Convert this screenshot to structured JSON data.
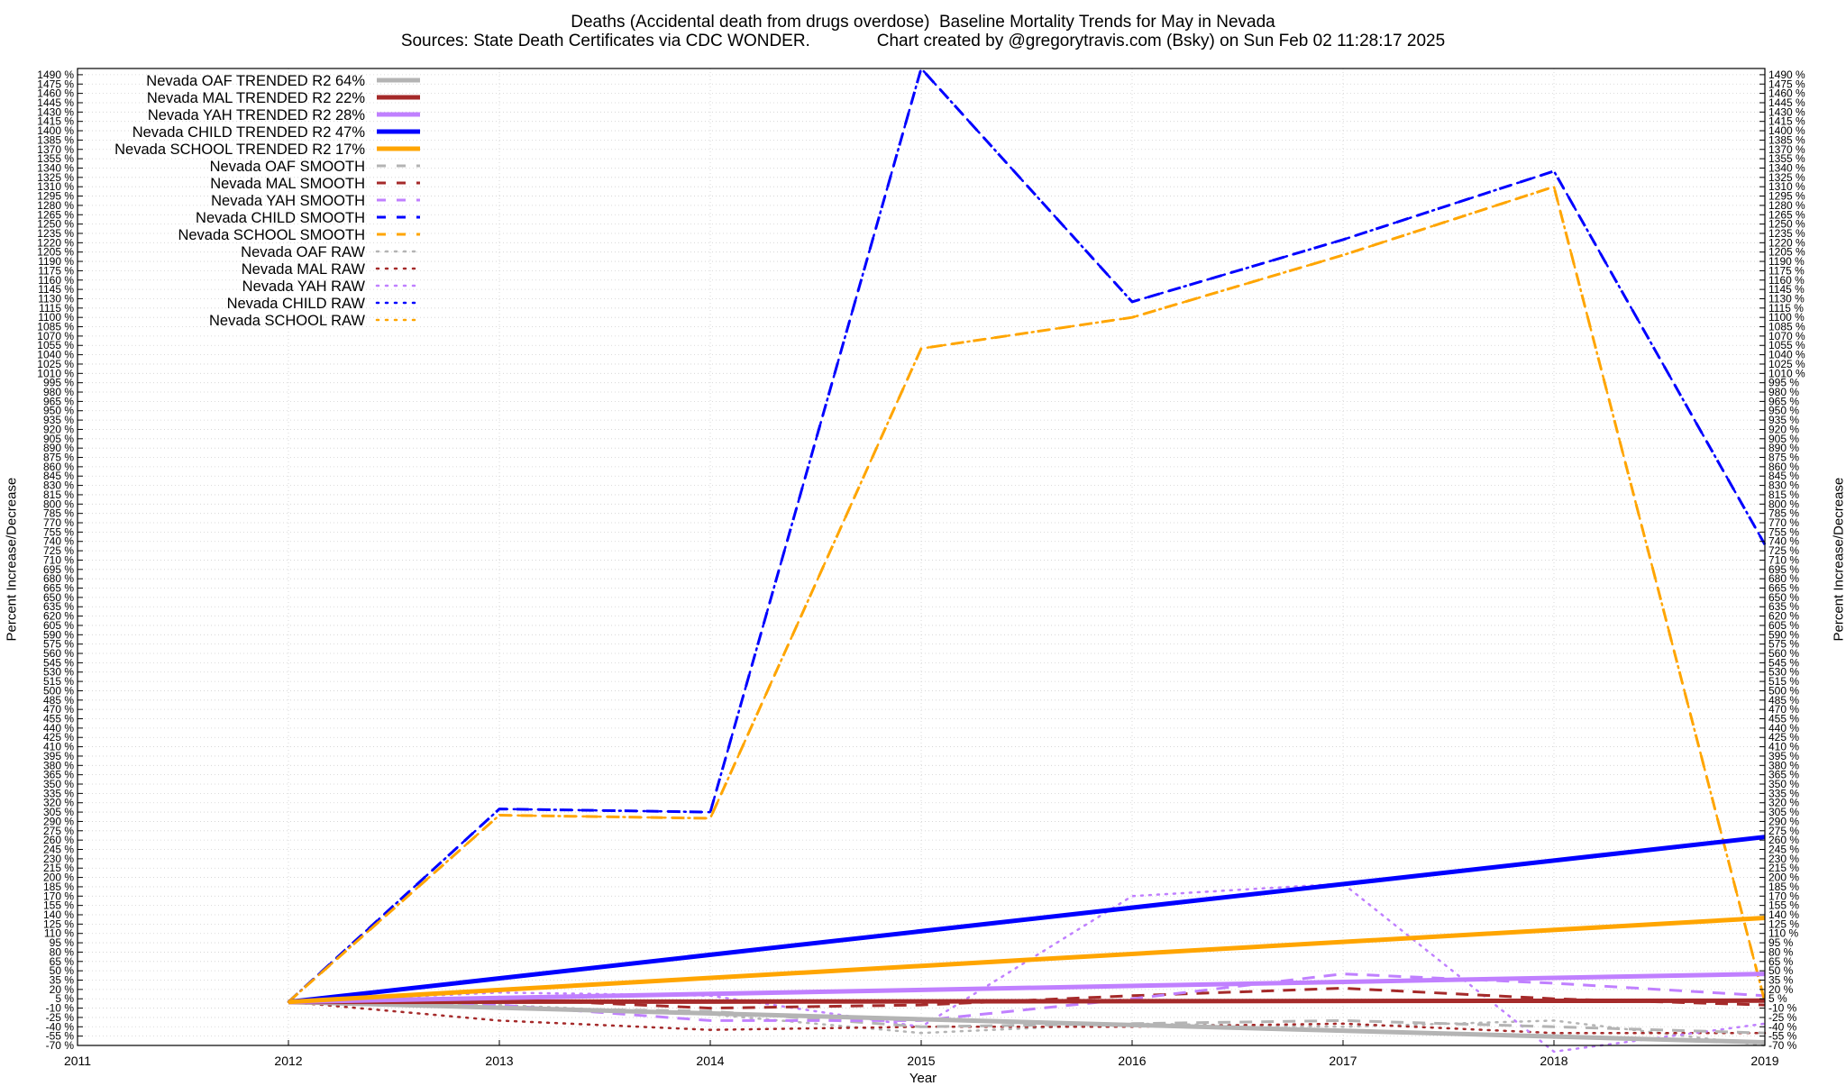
{
  "chart_data": {
    "type": "line",
    "title": "Deaths (Accidental death from drugs overdose)  Baseline Mortality Trends for May in Nevada",
    "subtitle": "Sources: State Death Certificates via CDC WONDER.              Chart created by @gregorytravis.com (Bsky) on Sun Feb 02 11:28:17 2025",
    "xlabel": "Year",
    "ylabel": "Percent Increase/Decrease",
    "xlim": [
      2011,
      2019
    ],
    "ylim": [
      -70,
      1500
    ],
    "x_ticks": [
      2011,
      2012,
      2013,
      2014,
      2015,
      2016,
      2017,
      2018,
      2019
    ],
    "y_tick_step": 15,
    "y_tick_suffix": " %",
    "grid": true,
    "legend_position": "top-left",
    "series": [
      {
        "name": "Nevada OAF TRENDED R2  64%",
        "style": "solid",
        "color": "#b4b4b4",
        "x": [
          2012,
          2019
        ],
        "y": [
          0,
          -65
        ]
      },
      {
        "name": "Nevada MAL TRENDED R2  22%",
        "style": "solid",
        "color": "#a52a2a",
        "x": [
          2012,
          2019
        ],
        "y": [
          0,
          2
        ]
      },
      {
        "name": "Nevada YAH TRENDED R2  28%",
        "style": "solid",
        "color": "#c080ff",
        "x": [
          2012,
          2019
        ],
        "y": [
          0,
          45
        ]
      },
      {
        "name": "Nevada CHILD TRENDED R2  47%",
        "style": "solid",
        "color": "#0000ff",
        "x": [
          2012,
          2019
        ],
        "y": [
          0,
          265
        ]
      },
      {
        "name": "Nevada SCHOOL TRENDED R2  17%",
        "style": "solid",
        "color": "#ffa500",
        "x": [
          2012,
          2019
        ],
        "y": [
          0,
          135
        ]
      },
      {
        "name": "Nevada OAF SMOOTH",
        "style": "dashed",
        "color": "#b4b4b4",
        "x": [
          2012,
          2013,
          2014,
          2015,
          2016,
          2017,
          2018,
          2019
        ],
        "y": [
          0,
          -10,
          -15,
          -40,
          -35,
          -30,
          -40,
          -50
        ]
      },
      {
        "name": "Nevada MAL SMOOTH",
        "style": "dashed",
        "color": "#a52a2a",
        "x": [
          2012,
          2013,
          2014,
          2015,
          2016,
          2017,
          2018,
          2019
        ],
        "y": [
          0,
          5,
          -10,
          -5,
          10,
          22,
          5,
          -5
        ]
      },
      {
        "name": "Nevada YAH SMOOTH",
        "style": "dashed",
        "color": "#c080ff",
        "x": [
          2012,
          2013,
          2014,
          2015,
          2016,
          2017,
          2018,
          2019
        ],
        "y": [
          0,
          -5,
          -30,
          -30,
          5,
          45,
          30,
          10
        ]
      },
      {
        "name": "Nevada CHILD SMOOTH",
        "style": "dashed",
        "color": "#0000ff",
        "x": [
          2012,
          2013,
          2014,
          2015,
          2016,
          2017,
          2018,
          2019
        ],
        "y": [
          0,
          310,
          305,
          1500,
          1125,
          1225,
          1335,
          735
        ]
      },
      {
        "name": "Nevada SCHOOL SMOOTH",
        "style": "dashed",
        "color": "#ffa500",
        "x": [
          2012,
          2013,
          2014,
          2015,
          2016,
          2017,
          2018,
          2019
        ],
        "y": [
          0,
          300,
          295,
          1050,
          1100,
          1200,
          1310,
          0
        ]
      },
      {
        "name": "Nevada OAF RAW",
        "style": "dotted",
        "color": "#b4b4b4",
        "x": [
          2012,
          2013,
          2014,
          2015,
          2016,
          2017,
          2018,
          2019
        ],
        "y": [
          0,
          -5,
          -20,
          -50,
          -35,
          -40,
          -30,
          -70
        ]
      },
      {
        "name": "Nevada MAL RAW",
        "style": "dotted",
        "color": "#a52a2a",
        "x": [
          2012,
          2013,
          2014,
          2015,
          2016,
          2017,
          2018,
          2019
        ],
        "y": [
          0,
          -30,
          -45,
          -40,
          -40,
          -35,
          -50,
          -50
        ]
      },
      {
        "name": "Nevada YAH RAW",
        "style": "dotted",
        "color": "#c080ff",
        "x": [
          2012,
          2013,
          2014,
          2015,
          2016,
          2017,
          2018,
          2019
        ],
        "y": [
          0,
          15,
          10,
          -40,
          170,
          190,
          -80,
          -35
        ]
      },
      {
        "name": "Nevada CHILD RAW",
        "style": "dotted",
        "color": "#0000ff",
        "x": [
          2012,
          2013,
          2014,
          2015,
          2016,
          2017,
          2018,
          2019
        ],
        "y": [
          0,
          310,
          305,
          1500,
          1125,
          1225,
          1335,
          735
        ]
      },
      {
        "name": "Nevada SCHOOL RAW",
        "style": "dotted",
        "color": "#ffa500",
        "x": [
          2012,
          2013,
          2014,
          2015,
          2016,
          2017,
          2018,
          2019
        ],
        "y": [
          0,
          300,
          295,
          1050,
          1100,
          1200,
          1310,
          0
        ]
      }
    ]
  }
}
